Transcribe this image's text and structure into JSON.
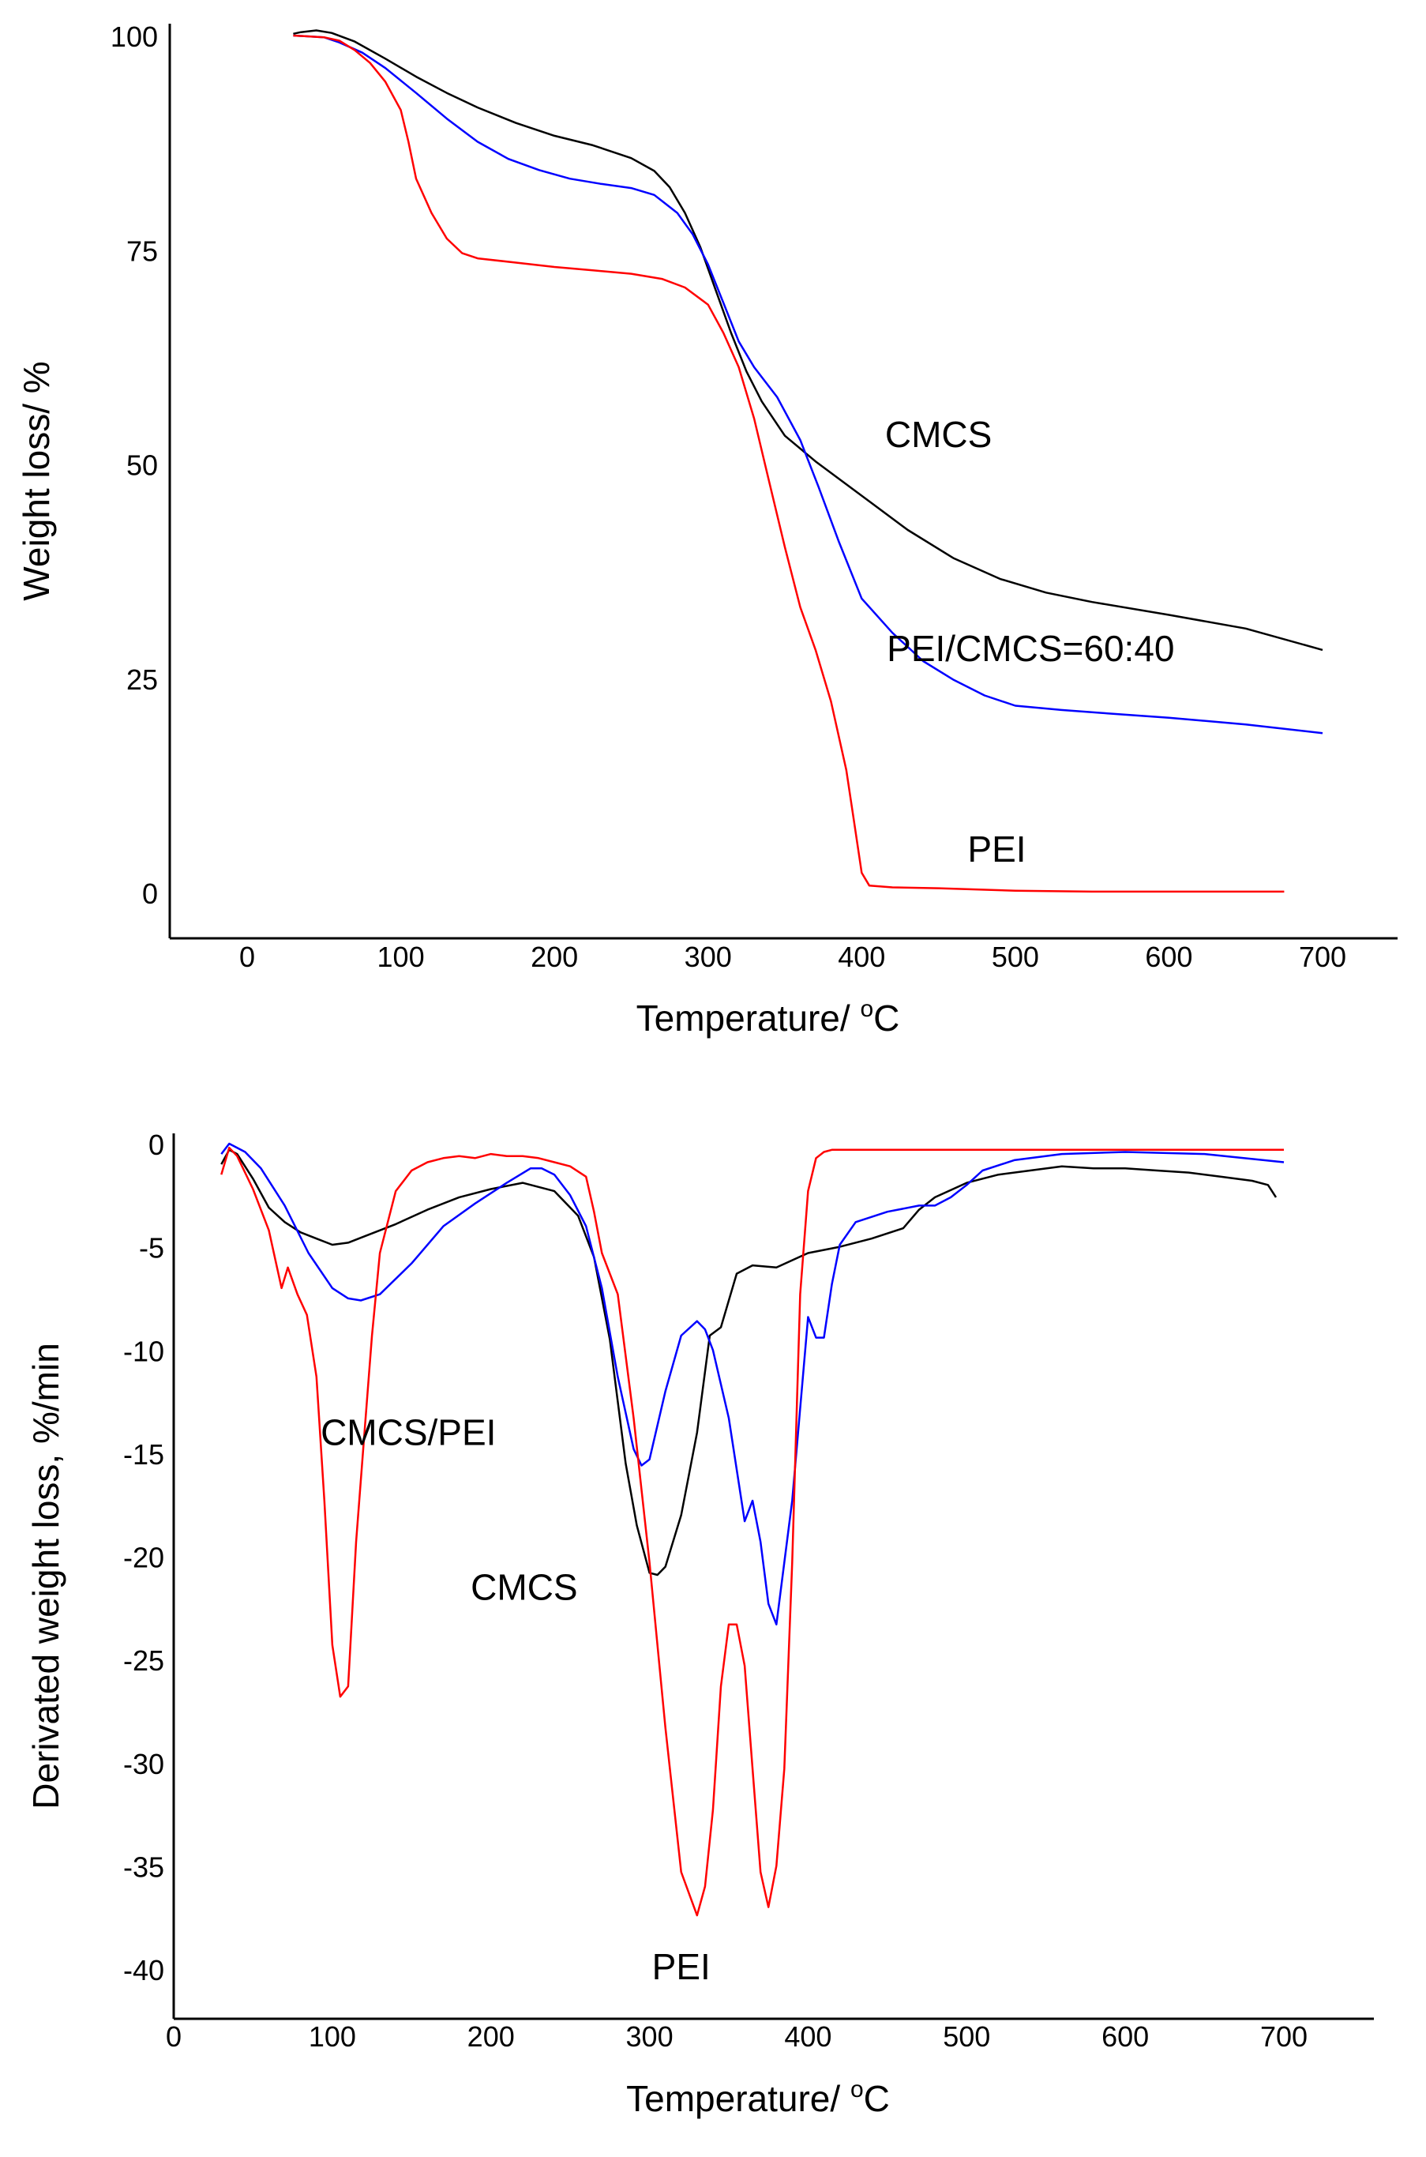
{
  "chart_data": [
    {
      "type": "line",
      "title": "",
      "xlabel_main": "Temperature/ ",
      "xlabel_sup": "o",
      "xlabel_unit": "C",
      "ylabel": "Weight loss/ %",
      "xlim": [
        -50,
        750
      ],
      "ylim": [
        -5,
        103
      ],
      "xticks": [
        0,
        100,
        200,
        300,
        400,
        500,
        600,
        700
      ],
      "yticks": [
        0,
        25,
        50,
        75,
        100
      ],
      "xtick_labels": [
        "0",
        "100",
        "200",
        "300",
        "400",
        "500",
        "600",
        "700"
      ],
      "ytick_labels": [
        "0",
        "25",
        "50",
        "75",
        "100"
      ],
      "series": [
        {
          "name": "CMCS",
          "color": "#000000",
          "x": [
            30,
            35,
            45,
            55,
            70,
            90,
            110,
            130,
            150,
            175,
            200,
            225,
            250,
            265,
            275,
            285,
            295,
            305,
            315,
            325,
            335,
            350,
            370,
            400,
            430,
            460,
            490,
            520,
            550,
            600,
            650,
            700
          ],
          "y": [
            100.2,
            100.4,
            100.6,
            100.3,
            99.3,
            97.3,
            95.2,
            93.3,
            91.6,
            89.8,
            88.3,
            87.2,
            85.7,
            84.2,
            82.3,
            79.3,
            75.3,
            70.3,
            65.3,
            60.8,
            57.3,
            53.3,
            50.3,
            46.3,
            42.3,
            39.0,
            36.6,
            35.0,
            33.9,
            32.4,
            30.8,
            28.3
          ]
        },
        {
          "name": "PEI/CMCS=60:40",
          "color": "#0000ff",
          "x": [
            30,
            50,
            60,
            75,
            90,
            110,
            130,
            150,
            170,
            190,
            210,
            230,
            250,
            265,
            280,
            290,
            300,
            310,
            320,
            330,
            345,
            360,
            372,
            385,
            400,
            420,
            440,
            460,
            480,
            500,
            530,
            560,
            600,
            650,
            700
          ],
          "y": [
            100,
            99.8,
            99.2,
            98,
            96.2,
            93.3,
            90.3,
            87.6,
            85.6,
            84.3,
            83.3,
            82.7,
            82.2,
            81.4,
            79.3,
            76.8,
            73.3,
            68.8,
            64.3,
            61.3,
            57.8,
            52.8,
            47.3,
            41.0,
            34.3,
            30.3,
            27.0,
            24.8,
            23.0,
            21.8,
            21.3,
            20.9,
            20.4,
            19.6,
            18.6
          ]
        },
        {
          "name": "PEI",
          "color": "#ff0000",
          "x": [
            30,
            50,
            60,
            70,
            80,
            90,
            100,
            105,
            110,
            120,
            130,
            140,
            150,
            175,
            200,
            225,
            250,
            270,
            285,
            300,
            310,
            320,
            330,
            340,
            350,
            360,
            370,
            380,
            390,
            395,
            400,
            405,
            420,
            450,
            500,
            550,
            600,
            650,
            675
          ],
          "y": [
            100,
            99.8,
            99.4,
            98.3,
            96.8,
            94.6,
            91.3,
            87.6,
            83.3,
            79.3,
            76.3,
            74.6,
            74.0,
            73.5,
            73.0,
            72.6,
            72.2,
            71.6,
            70.6,
            68.6,
            65.3,
            61.3,
            55.3,
            47.8,
            40.3,
            33.3,
            28.3,
            22.3,
            14.3,
            8.3,
            2.3,
            0.8,
            0.6,
            0.5,
            0.2,
            0.1,
            0.1,
            0.1,
            0.1
          ]
        }
      ],
      "annotations": [
        {
          "text": "CMCS",
          "x": 450,
          "y": 52.0
        },
        {
          "text": "PEI/CMCS=60:40",
          "x": 510,
          "y": 27.0
        },
        {
          "text": "PEI",
          "x": 488,
          "y": 3.6
        }
      ]
    },
    {
      "type": "line",
      "title": "",
      "xlabel_main": "Temperature/ ",
      "xlabel_sup": "o",
      "xlabel_unit": "C",
      "ylabel": "Derivated weight loss, %/min",
      "xlim": [
        0,
        750
      ],
      "ylim": [
        -42.6,
        0.5
      ],
      "xticks": [
        0,
        100,
        200,
        300,
        400,
        500,
        600,
        700
      ],
      "yticks": [
        0,
        -5,
        -10,
        -15,
        -20,
        -25,
        -30,
        -35,
        -40
      ],
      "xtick_labels": [
        "0",
        "100",
        "200",
        "300",
        "400",
        "500",
        "600",
        "700"
      ],
      "ytick_labels": [
        "0",
        "-5",
        "-10",
        "-15",
        "-20",
        "-25",
        "-30",
        "-35",
        "-40"
      ],
      "series": [
        {
          "name": "CMCS",
          "color": "#000000",
          "x": [
            30,
            35,
            40,
            50,
            60,
            70,
            80,
            90,
            100,
            110,
            120,
            140,
            160,
            180,
            200,
            220,
            240,
            255,
            265,
            275,
            285,
            292,
            300,
            305,
            310,
            320,
            330,
            338,
            345,
            355,
            365,
            380,
            400,
            420,
            440,
            460,
            470,
            480,
            500,
            520,
            540,
            560,
            580,
            600,
            620,
            640,
            660,
            680,
            690,
            695
          ],
          "y": [
            -1.0,
            -0.3,
            -0.5,
            -1.7,
            -3.1,
            -3.8,
            -4.3,
            -4.6,
            -4.9,
            -4.8,
            -4.5,
            -3.9,
            -3.2,
            -2.6,
            -2.2,
            -1.9,
            -2.3,
            -3.5,
            -5.5,
            -9.5,
            -15.5,
            -18.5,
            -20.8,
            -20.9,
            -20.5,
            -18.0,
            -14.0,
            -9.3,
            -8.9,
            -6.3,
            -5.9,
            -6.0,
            -5.3,
            -5.0,
            -4.6,
            -4.1,
            -3.2,
            -2.6,
            -1.9,
            -1.5,
            -1.3,
            -1.1,
            -1.2,
            -1.2,
            -1.3,
            -1.4,
            -1.6,
            -1.8,
            -2.0,
            -2.6
          ]
        },
        {
          "name": "CMCS/PEI",
          "color": "#0000ff",
          "x": [
            30,
            35,
            45,
            55,
            70,
            85,
            100,
            110,
            118,
            130,
            150,
            170,
            190,
            210,
            225,
            232,
            240,
            250,
            260,
            270,
            280,
            290,
            295,
            300,
            310,
            320,
            330,
            335,
            340,
            350,
            360,
            365,
            370,
            375,
            380,
            385,
            390,
            400,
            405,
            410,
            415,
            420,
            430,
            450,
            470,
            480,
            490,
            500,
            510,
            530,
            560,
            600,
            650,
            700
          ],
          "y": [
            -0.5,
            0.0,
            -0.4,
            -1.2,
            -3.0,
            -5.3,
            -7.0,
            -7.5,
            -7.6,
            -7.3,
            -5.8,
            -4.0,
            -2.9,
            -1.9,
            -1.2,
            -1.2,
            -1.5,
            -2.5,
            -4.0,
            -7.0,
            -11.3,
            -14.8,
            -15.6,
            -15.3,
            -12.0,
            -9.3,
            -8.6,
            -9.0,
            -10.0,
            -13.3,
            -18.3,
            -17.3,
            -19.3,
            -22.3,
            -23.3,
            -20.3,
            -17.3,
            -8.4,
            -9.4,
            -9.4,
            -6.8,
            -4.9,
            -3.8,
            -3.3,
            -3.0,
            -3.0,
            -2.6,
            -2.0,
            -1.3,
            -0.8,
            -0.5,
            -0.4,
            -0.5,
            -0.9
          ]
        },
        {
          "name": "PEI",
          "color": "#ff0000",
          "x": [
            30,
            35,
            40,
            50,
            60,
            68,
            72,
            78,
            84,
            90,
            95,
            100,
            105,
            110,
            115,
            120,
            125,
            130,
            140,
            150,
            160,
            170,
            180,
            190,
            200,
            210,
            220,
            230,
            240,
            250,
            260,
            265,
            270,
            280,
            290,
            300,
            310,
            320,
            330,
            335,
            340,
            345,
            350,
            355,
            360,
            365,
            370,
            375,
            380,
            385,
            390,
            395,
            400,
            405,
            410,
            415,
            420,
            430,
            450,
            500,
            550,
            600,
            650,
            700
          ],
          "y": [
            -1.5,
            -0.2,
            -0.6,
            -2.2,
            -4.2,
            -7.0,
            -6.0,
            -7.3,
            -8.3,
            -11.3,
            -17.3,
            -24.3,
            -26.8,
            -26.3,
            -19.3,
            -14.3,
            -9.3,
            -5.3,
            -2.3,
            -1.3,
            -0.9,
            -0.7,
            -0.6,
            -0.7,
            -0.5,
            -0.6,
            -0.6,
            -0.7,
            -0.9,
            -1.1,
            -1.6,
            -3.3,
            -5.3,
            -7.3,
            -13.3,
            -20.3,
            -28.3,
            -35.3,
            -37.4,
            -36.0,
            -32.3,
            -26.3,
            -23.3,
            -23.3,
            -25.3,
            -30.3,
            -35.3,
            -37.0,
            -35.0,
            -30.3,
            -20.3,
            -7.3,
            -2.3,
            -0.7,
            -0.4,
            -0.3,
            -0.3,
            -0.3,
            -0.3,
            -0.3,
            -0.3,
            -0.3,
            -0.3,
            -0.3
          ]
        }
      ],
      "annotations": [
        {
          "text": "CMCS/PEI",
          "x": 148,
          "y": -14.6
        },
        {
          "text": "CMCS",
          "x": 221,
          "y": -22.1
        },
        {
          "text": "PEI",
          "x": 320,
          "y": -40.5
        }
      ]
    }
  ]
}
